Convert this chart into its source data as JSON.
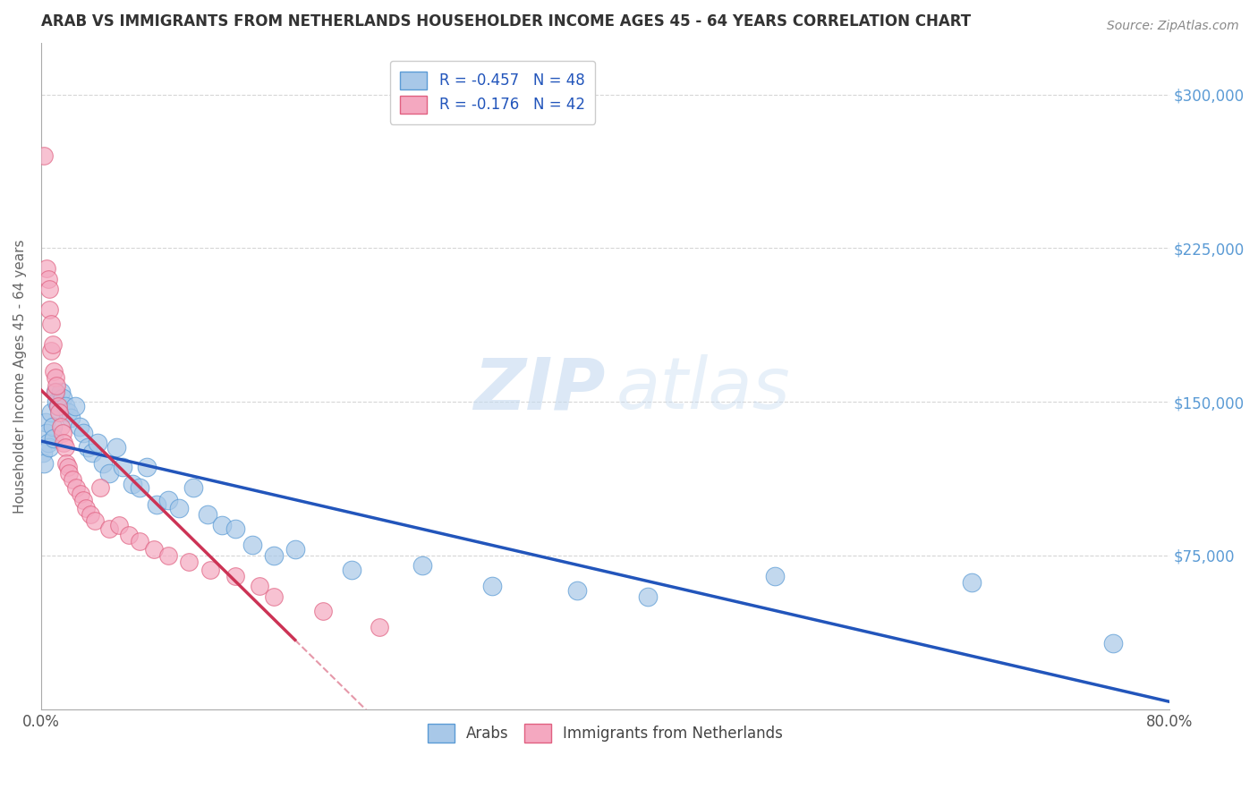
{
  "title": "ARAB VS IMMIGRANTS FROM NETHERLANDS HOUSEHOLDER INCOME AGES 45 - 64 YEARS CORRELATION CHART",
  "source": "Source: ZipAtlas.com",
  "ylabel": "Householder Income Ages 45 - 64 years",
  "ytick_labels": [
    "$75,000",
    "$150,000",
    "$225,000",
    "$300,000"
  ],
  "ytick_values": [
    75000,
    150000,
    225000,
    300000
  ],
  "ylim": [
    0,
    325000
  ],
  "xlim": [
    0.0,
    0.8
  ],
  "legend_entries": [
    {
      "label": "R = -0.457   N = 48",
      "color": "#a8c4e0"
    },
    {
      "label": "R = -0.176   N = 42",
      "color": "#f4a8b8"
    }
  ],
  "legend_bottom": [
    "Arabs",
    "Immigrants from Netherlands"
  ],
  "background_color": "#ffffff",
  "grid_color": "#cccccc",
  "title_color": "#333333",
  "right_tick_color": "#5b9bd5",
  "arab_color": "#a8c8e8",
  "arab_edge_color": "#5b9bd5",
  "netherlands_color": "#f4a8c0",
  "netherlands_edge_color": "#e06080",
  "trend_arab_color": "#2255bb",
  "trend_netherlands_color": "#cc3355",
  "arab_points": [
    [
      0.001,
      125000
    ],
    [
      0.002,
      120000
    ],
    [
      0.003,
      140000
    ],
    [
      0.004,
      135000
    ],
    [
      0.005,
      130000
    ],
    [
      0.006,
      128000
    ],
    [
      0.007,
      145000
    ],
    [
      0.008,
      138000
    ],
    [
      0.009,
      132000
    ],
    [
      0.01,
      155000
    ],
    [
      0.011,
      150000
    ],
    [
      0.012,
      148000
    ],
    [
      0.014,
      155000
    ],
    [
      0.015,
      152000
    ],
    [
      0.017,
      148000
    ],
    [
      0.019,
      145000
    ],
    [
      0.021,
      142000
    ],
    [
      0.024,
      148000
    ],
    [
      0.027,
      138000
    ],
    [
      0.03,
      135000
    ],
    [
      0.033,
      128000
    ],
    [
      0.036,
      125000
    ],
    [
      0.04,
      130000
    ],
    [
      0.044,
      120000
    ],
    [
      0.048,
      115000
    ],
    [
      0.053,
      128000
    ],
    [
      0.058,
      118000
    ],
    [
      0.065,
      110000
    ],
    [
      0.07,
      108000
    ],
    [
      0.075,
      118000
    ],
    [
      0.082,
      100000
    ],
    [
      0.09,
      102000
    ],
    [
      0.098,
      98000
    ],
    [
      0.108,
      108000
    ],
    [
      0.118,
      95000
    ],
    [
      0.128,
      90000
    ],
    [
      0.138,
      88000
    ],
    [
      0.15,
      80000
    ],
    [
      0.165,
      75000
    ],
    [
      0.18,
      78000
    ],
    [
      0.22,
      68000
    ],
    [
      0.27,
      70000
    ],
    [
      0.32,
      60000
    ],
    [
      0.38,
      58000
    ],
    [
      0.43,
      55000
    ],
    [
      0.52,
      65000
    ],
    [
      0.66,
      62000
    ],
    [
      0.76,
      32000
    ]
  ],
  "netherlands_points": [
    [
      0.002,
      270000
    ],
    [
      0.004,
      215000
    ],
    [
      0.005,
      210000
    ],
    [
      0.006,
      205000
    ],
    [
      0.006,
      195000
    ],
    [
      0.007,
      188000
    ],
    [
      0.007,
      175000
    ],
    [
      0.008,
      178000
    ],
    [
      0.009,
      165000
    ],
    [
      0.01,
      162000
    ],
    [
      0.01,
      155000
    ],
    [
      0.011,
      158000
    ],
    [
      0.012,
      148000
    ],
    [
      0.013,
      145000
    ],
    [
      0.014,
      138000
    ],
    [
      0.015,
      135000
    ],
    [
      0.016,
      130000
    ],
    [
      0.017,
      128000
    ],
    [
      0.018,
      120000
    ],
    [
      0.019,
      118000
    ],
    [
      0.02,
      115000
    ],
    [
      0.022,
      112000
    ],
    [
      0.025,
      108000
    ],
    [
      0.028,
      105000
    ],
    [
      0.03,
      102000
    ],
    [
      0.032,
      98000
    ],
    [
      0.035,
      95000
    ],
    [
      0.038,
      92000
    ],
    [
      0.042,
      108000
    ],
    [
      0.048,
      88000
    ],
    [
      0.055,
      90000
    ],
    [
      0.062,
      85000
    ],
    [
      0.07,
      82000
    ],
    [
      0.08,
      78000
    ],
    [
      0.09,
      75000
    ],
    [
      0.105,
      72000
    ],
    [
      0.12,
      68000
    ],
    [
      0.138,
      65000
    ],
    [
      0.155,
      60000
    ],
    [
      0.165,
      55000
    ],
    [
      0.2,
      48000
    ],
    [
      0.24,
      40000
    ]
  ]
}
